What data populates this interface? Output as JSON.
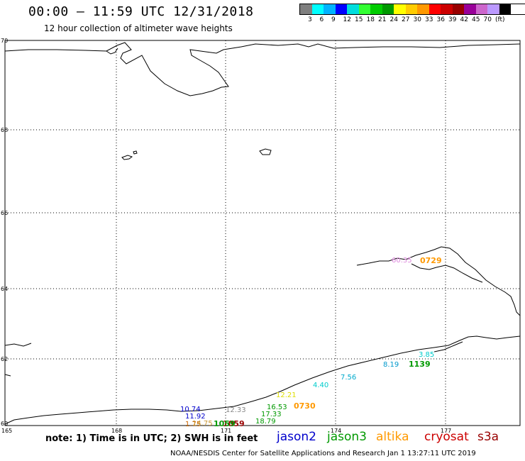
{
  "header": {
    "title": "00:00 – 11:59 UTC 12/31/2018",
    "subtitle": "12 hour collection of altimeter wave heights"
  },
  "colorbar": {
    "colors": [
      "#7f7f7f",
      "#00ffff",
      "#00b3ff",
      "#0000ff",
      "#00dddd",
      "#33ff33",
      "#00cc00",
      "#009900",
      "#ffff00",
      "#ffcc00",
      "#ff9900",
      "#ff0000",
      "#cc0000",
      "#990000",
      "#990099",
      "#cc66cc",
      "#bb99ff",
      "#000000"
    ],
    "labels": [
      "3",
      "6",
      "9",
      "12",
      "15",
      "18",
      "21",
      "24",
      "27",
      "30",
      "33",
      "36",
      "39",
      "42",
      "45",
      "70",
      "(ft)"
    ]
  },
  "axes": {
    "lat_labels": [
      "70",
      "68",
      "66",
      "64",
      "62",
      "60"
    ],
    "lon_labels": [
      "165",
      "168",
      "171",
      "174",
      "177"
    ]
  },
  "observations": [
    {
      "text": "10.74",
      "color": "#0000cc"
    },
    {
      "text": "11.92",
      "color": "#0000cc"
    },
    {
      "text": "12.33",
      "color": "#888888"
    },
    {
      "text": "12.21",
      "color": "#dddd00"
    },
    {
      "text": "16.53",
      "color": "#009900"
    },
    {
      "text": "17.33",
      "color": "#009900"
    },
    {
      "text": "18.79",
      "color": "#009900"
    },
    {
      "text": "4.40",
      "color": "#00cccc"
    },
    {
      "text": "7.56",
      "color": "#00aacc"
    },
    {
      "text": "8.19",
      "color": "#0099cc"
    },
    {
      "text": "3.85",
      "color": "#00cccc"
    },
    {
      "text": "60.35",
      "color": "#dd88dd"
    },
    {
      "text": "1.75",
      "color": "#cc6600"
    },
    {
      "text": "14.75",
      "color": "#cc9933"
    }
  ],
  "pass_times": [
    {
      "text": "0730",
      "color": "#ff9900"
    },
    {
      "text": "1139",
      "color": "#009900"
    },
    {
      "text": "0729",
      "color": "#ff9900"
    },
    {
      "text": "1059",
      "color": "#990000"
    },
    {
      "text": "1059",
      "color": "#009900"
    }
  ],
  "note": "note: 1) Time is in UTC; 2) SWH is in feet",
  "legend": [
    {
      "label": "jason2",
      "color": "#0000cc"
    },
    {
      "label": "jason3",
      "color": "#009900"
    },
    {
      "label": "altika",
      "color": "#ff9900"
    },
    {
      "label": "cryosat",
      "color": "#cc0000"
    },
    {
      "label": "s3a",
      "color": "#990000"
    }
  ],
  "footer": "NOAA/NESDIS Center for Satellite Applications and Research    Jan  1 13:27:11 UTC 2019"
}
